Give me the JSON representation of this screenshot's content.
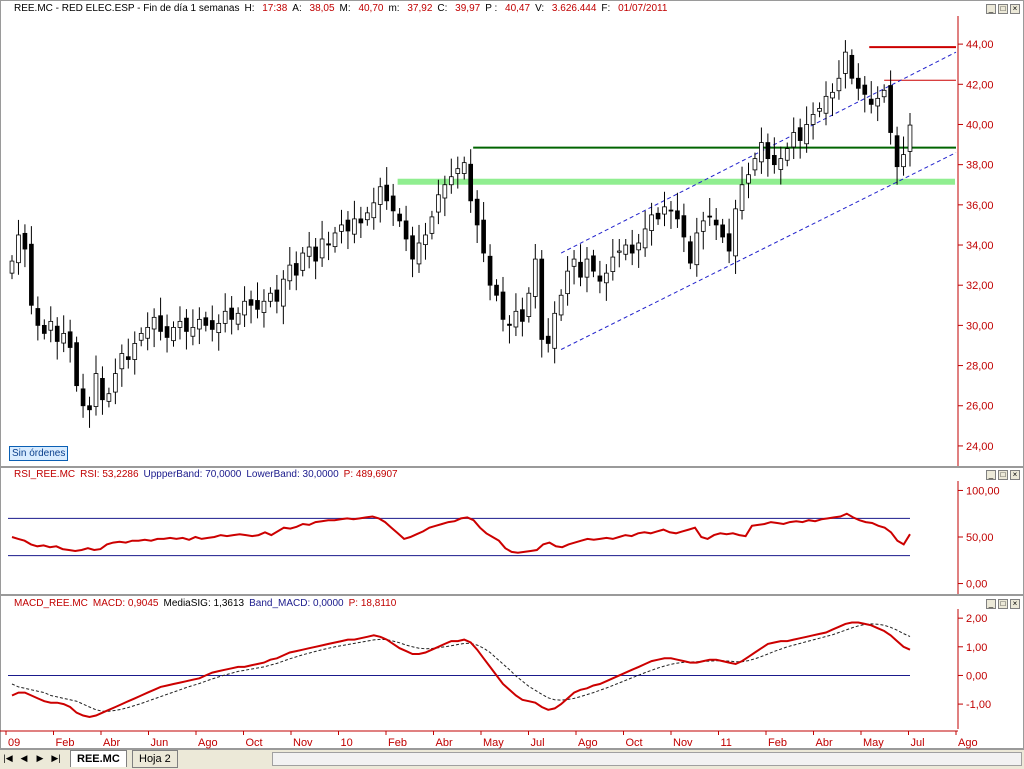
{
  "colors": {
    "axis_red": "#c00000",
    "up_fill": "#ffffff",
    "down_fill": "#000000",
    "resistance": "#006400",
    "support_light": "#90ee90",
    "channel": "#2222cc",
    "rsi_line": "#cc0000",
    "band": "#1a1a8c",
    "macd": "#cc0000",
    "signal": "#222222",
    "top_line": "#cc0000"
  },
  "price_panel": {
    "title_parts": [
      {
        "t": "REE.MC - RED ELEC.ESP - Fin de día 1 semanas",
        "c": "#000000"
      },
      {
        "t": "H: ",
        "c": "#000000"
      },
      {
        "t": "17:38",
        "c": "#c00000"
      },
      {
        "t": "A: ",
        "c": "#000000"
      },
      {
        "t": "38,05",
        "c": "#c00000"
      },
      {
        "t": "M: ",
        "c": "#000000"
      },
      {
        "t": "40,70",
        "c": "#c00000"
      },
      {
        "t": "m: ",
        "c": "#000000"
      },
      {
        "t": "37,92",
        "c": "#c00000"
      },
      {
        "t": "C: ",
        "c": "#000000"
      },
      {
        "t": "39,97",
        "c": "#c00000"
      },
      {
        "t": "P : ",
        "c": "#000000"
      },
      {
        "t": "40,47",
        "c": "#c00000"
      },
      {
        "t": "V: ",
        "c": "#000000"
      },
      {
        "t": "3.626.444",
        "c": "#c00000"
      },
      {
        "t": "F: ",
        "c": "#000000"
      },
      {
        "t": "01/07/2011",
        "c": "#c00000"
      }
    ],
    "sin_ordenes": "Sin órdenes"
  },
  "rsi_panel": {
    "title_parts": [
      {
        "t": "RSI_REE.MC",
        "c": "#c00000"
      },
      {
        "t": "RSI: 53,2286",
        "c": "#c00000"
      },
      {
        "t": "UppperBand: 70,0000",
        "c": "#1a1a8c"
      },
      {
        "t": "LowerBand: 30,0000",
        "c": "#1a1a8c"
      },
      {
        "t": "P: 489,6907",
        "c": "#c00000"
      }
    ]
  },
  "macd_panel": {
    "title_parts": [
      {
        "t": "MACD_REE.MC",
        "c": "#c00000"
      },
      {
        "t": "MACD: 0,9045",
        "c": "#c00000"
      },
      {
        "t": "MediaSIG: 1,3613",
        "c": "#000000"
      },
      {
        "t": "Band_MACD: 0,0000",
        "c": "#1a1a8c"
      },
      {
        "t": "P: 18,8110",
        "c": "#c00000"
      }
    ]
  },
  "tabs": {
    "active": "REE.MC",
    "other": "Hoja 2",
    "nav": [
      "|◀",
      "◀",
      "▶",
      "▶|"
    ]
  },
  "chart_data": [
    {
      "type": "candlestick",
      "title": "REE.MC - RED ELEC.ESP - Fin de día 1 semanas",
      "period": "weekly",
      "x_axis_labels": [
        "09",
        "Feb",
        "Abr",
        "Jun",
        "Ago",
        "Oct",
        "Nov",
        "10",
        "Feb",
        "Abr",
        "May",
        "Jul",
        "Ago",
        "Oct",
        "Nov",
        "11",
        "Feb",
        "Abr",
        "May",
        "Jul",
        "Ago"
      ],
      "y_ticks": [
        "24,00",
        "26,00",
        "28,00",
        "30,00",
        "32,00",
        "34,00",
        "36,00",
        "38,00",
        "40,00",
        "42,00",
        "44,00"
      ],
      "ylim": [
        23.2,
        45.2
      ],
      "close_series": [
        33.2,
        34.5,
        33.8,
        31.0,
        30.0,
        29.6,
        30.2,
        29.2,
        29.6,
        28.9,
        27.0,
        26.0,
        25.8,
        27.6,
        26.3,
        26.6,
        27.6,
        28.6,
        28.3,
        29.1,
        29.6,
        29.9,
        30.4,
        29.7,
        29.4,
        29.9,
        30.2,
        29.7,
        29.9,
        30.3,
        30.0,
        29.8,
        30.1,
        30.7,
        30.3,
        30.6,
        31.2,
        31.0,
        30.8,
        31.2,
        31.6,
        31.2,
        32.3,
        33.0,
        32.5,
        33.6,
        33.9,
        33.2,
        34.3,
        34.0,
        34.6,
        35.0,
        34.7,
        35.3,
        35.1,
        35.6,
        36.1,
        36.9,
        36.2,
        35.7,
        35.2,
        34.3,
        33.3,
        34.1,
        34.5,
        35.4,
        36.5,
        37.0,
        37.4,
        37.8,
        38.1,
        36.2,
        35.0,
        33.6,
        32.0,
        31.5,
        30.3,
        30.0,
        30.7,
        30.2,
        31.6,
        33.3,
        29.3,
        29.1,
        30.6,
        31.5,
        32.7,
        33.3,
        32.4,
        33.3,
        32.7,
        32.2,
        32.6,
        33.4,
        33.7,
        34.0,
        33.6,
        34.1,
        34.8,
        35.5,
        35.3,
        35.9,
        35.7,
        35.3,
        34.4,
        33.1,
        34.6,
        35.2,
        35.4,
        35.0,
        34.4,
        33.7,
        35.8,
        37.0,
        37.5,
        38.3,
        39.1,
        38.3,
        38.0,
        38.3,
        38.8,
        39.6,
        39.2,
        40.0,
        40.5,
        40.8,
        41.4,
        41.6,
        42.3,
        43.6,
        42.3,
        41.8,
        41.5,
        41.0,
        41.3,
        41.7,
        39.6,
        37.9,
        38.5,
        39.97
      ],
      "resistance_level": 38.85,
      "support_level": 37.15,
      "top_level": 43.85,
      "top_level_secondary": 42.2
    },
    {
      "type": "line",
      "title": "RSI_REE.MC",
      "y_ticks": [
        "0,00",
        "50,00",
        "100,00"
      ],
      "ylim": [
        -8,
        108
      ],
      "bands": [
        70,
        30
      ],
      "series": [
        {
          "name": "RSI",
          "values": [
            50,
            48,
            46,
            42,
            40,
            41,
            39,
            40,
            37,
            36,
            35,
            36,
            38,
            36,
            37,
            42,
            44,
            45,
            44,
            46,
            46,
            47,
            46,
            48,
            48,
            49,
            48,
            49,
            47,
            50,
            48,
            49,
            50,
            52,
            51,
            52,
            53,
            52,
            51,
            52,
            55,
            52,
            56,
            60,
            59,
            61,
            64,
            63,
            66,
            67,
            68,
            68,
            69,
            70,
            69,
            70,
            71,
            72,
            70,
            66,
            60,
            54,
            48,
            50,
            53,
            56,
            60,
            62,
            64,
            66,
            67,
            70,
            71,
            68,
            60,
            54,
            50,
            46,
            38,
            34,
            33,
            34,
            35,
            36,
            42,
            44,
            40,
            39,
            42,
            44,
            46,
            48,
            47,
            48,
            49,
            48,
            50,
            52,
            51,
            54,
            55,
            54,
            56,
            58,
            55,
            54,
            56,
            58,
            60,
            50,
            48,
            52,
            54,
            53,
            54,
            52,
            51,
            62,
            63,
            64,
            66,
            65,
            64,
            66,
            67,
            66,
            68,
            67,
            69,
            70,
            71,
            72,
            75,
            71,
            68,
            66,
            65,
            62,
            60,
            55,
            46,
            42,
            53
          ]
        }
      ]
    },
    {
      "type": "line",
      "title": "MACD_REE.MC",
      "y_ticks": [
        "-1,00",
        "0,00",
        "1,00",
        "2,00"
      ],
      "ylim": [
        -1.8,
        2.25
      ],
      "zero_band": 0,
      "series": [
        {
          "name": "MACD",
          "values": [
            -0.7,
            -0.6,
            -0.6,
            -0.7,
            -0.8,
            -0.9,
            -0.95,
            -0.95,
            -1.0,
            -1.1,
            -1.3,
            -1.4,
            -1.45,
            -1.4,
            -1.3,
            -1.2,
            -1.1,
            -1.0,
            -0.9,
            -0.8,
            -0.7,
            -0.6,
            -0.5,
            -0.4,
            -0.35,
            -0.3,
            -0.25,
            -0.2,
            -0.15,
            -0.1,
            0.0,
            0.1,
            0.15,
            0.2,
            0.25,
            0.3,
            0.3,
            0.35,
            0.4,
            0.45,
            0.55,
            0.6,
            0.7,
            0.8,
            0.85,
            0.9,
            0.95,
            1.0,
            1.05,
            1.1,
            1.15,
            1.2,
            1.25,
            1.25,
            1.3,
            1.35,
            1.4,
            1.35,
            1.25,
            1.1,
            0.95,
            0.85,
            0.75,
            0.75,
            0.8,
            0.9,
            1.0,
            1.1,
            1.2,
            1.2,
            1.25,
            1.15,
            0.9,
            0.6,
            0.3,
            0.0,
            -0.3,
            -0.5,
            -0.7,
            -0.85,
            -0.9,
            -0.95,
            -1.1,
            -1.2,
            -1.15,
            -1.0,
            -0.8,
            -0.6,
            -0.5,
            -0.45,
            -0.35,
            -0.3,
            -0.2,
            -0.1,
            0.0,
            0.1,
            0.2,
            0.3,
            0.4,
            0.5,
            0.55,
            0.6,
            0.6,
            0.55,
            0.5,
            0.45,
            0.45,
            0.5,
            0.55,
            0.55,
            0.5,
            0.45,
            0.4,
            0.5,
            0.65,
            0.8,
            0.95,
            1.1,
            1.15,
            1.2,
            1.2,
            1.25,
            1.3,
            1.35,
            1.4,
            1.45,
            1.5,
            1.6,
            1.7,
            1.8,
            1.85,
            1.85,
            1.8,
            1.75,
            1.65,
            1.55,
            1.4,
            1.2,
            1.0,
            0.9
          ]
        },
        {
          "name": "MediaSIG",
          "values": [
            -0.3,
            -0.4,
            -0.45,
            -0.5,
            -0.55,
            -0.6,
            -0.7,
            -0.75,
            -0.8,
            -0.85,
            -0.9,
            -1.0,
            -1.1,
            -1.2,
            -1.25,
            -1.25,
            -1.22,
            -1.18,
            -1.12,
            -1.05,
            -0.98,
            -0.9,
            -0.82,
            -0.74,
            -0.66,
            -0.58,
            -0.5,
            -0.42,
            -0.35,
            -0.28,
            -0.2,
            -0.12,
            -0.05,
            0.02,
            0.08,
            0.14,
            0.18,
            0.22,
            0.26,
            0.3,
            0.36,
            0.42,
            0.5,
            0.58,
            0.65,
            0.72,
            0.78,
            0.84,
            0.9,
            0.95,
            1.0,
            1.04,
            1.08,
            1.12,
            1.16,
            1.2,
            1.24,
            1.26,
            1.25,
            1.2,
            1.14,
            1.06,
            1.0,
            0.95,
            0.93,
            0.94,
            0.97,
            1.0,
            1.04,
            1.08,
            1.12,
            1.12,
            1.06,
            0.95,
            0.8,
            0.6,
            0.4,
            0.2,
            -0.02,
            -0.2,
            -0.38,
            -0.52,
            -0.66,
            -0.78,
            -0.85,
            -0.86,
            -0.84,
            -0.8,
            -0.74,
            -0.67,
            -0.6,
            -0.52,
            -0.44,
            -0.35,
            -0.26,
            -0.17,
            -0.08,
            0.01,
            0.1,
            0.18,
            0.26,
            0.33,
            0.39,
            0.43,
            0.46,
            0.47,
            0.48,
            0.49,
            0.5,
            0.51,
            0.51,
            0.5,
            0.48,
            0.48,
            0.52,
            0.58,
            0.66,
            0.75,
            0.84,
            0.92,
            1.0,
            1.06,
            1.12,
            1.18,
            1.24,
            1.3,
            1.36,
            1.42,
            1.5,
            1.58,
            1.66,
            1.73,
            1.78,
            1.8,
            1.79,
            1.75,
            1.68,
            1.58,
            1.46,
            1.36
          ]
        }
      ]
    }
  ]
}
